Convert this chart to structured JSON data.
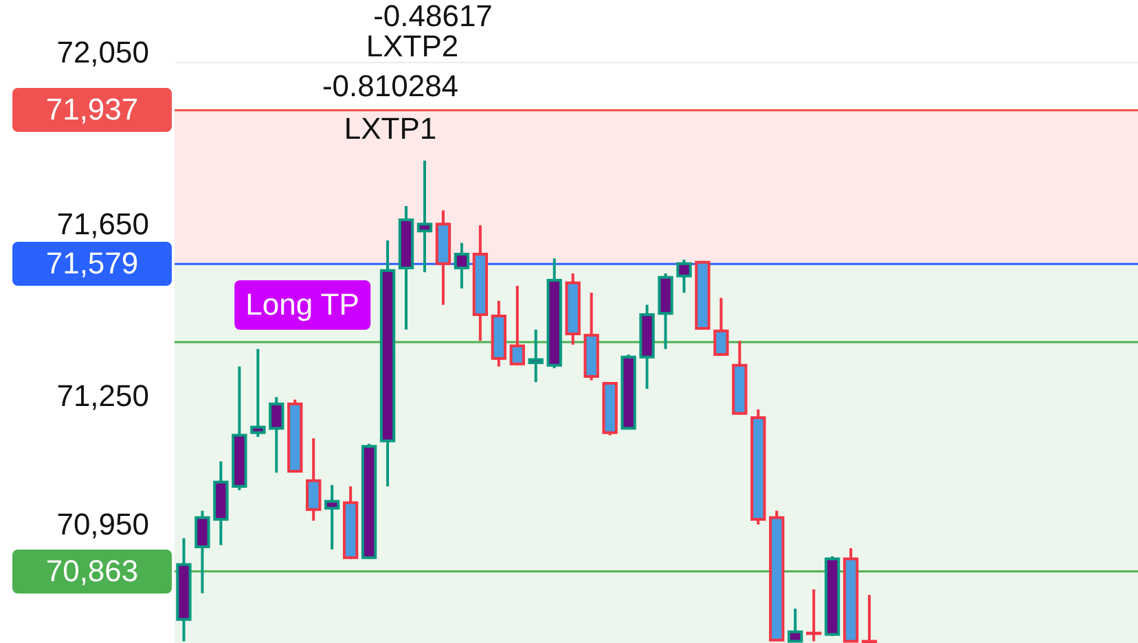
{
  "chart_data": {
    "type": "candlestick",
    "categories": [
      null,
      null,
      null,
      null,
      null,
      null,
      null,
      null,
      null,
      null,
      null,
      null,
      null,
      null,
      null,
      null,
      null,
      null,
      null,
      null,
      null,
      null,
      null,
      null,
      null,
      null,
      null,
      null,
      null,
      null,
      null,
      null,
      null,
      null,
      null,
      null,
      null,
      null,
      null,
      null,
      null,
      null,
      null,
      null,
      null,
      null,
      null,
      null,
      null,
      null,
      null,
      null
    ],
    "ohlc": [
      [
        70751,
        70940,
        70700,
        70879
      ],
      [
        70920,
        71004,
        70812,
        70988
      ],
      [
        70984,
        71119,
        70924,
        71071
      ],
      [
        71061,
        71340,
        71052,
        71180
      ],
      [
        71186,
        71381,
        71176,
        71199
      ],
      [
        71196,
        71269,
        71093,
        71253
      ],
      [
        71253,
        71263,
        71093,
        71096
      ],
      [
        71074,
        71173,
        70981,
        71007
      ],
      [
        71010,
        71064,
        70914,
        71026
      ],
      [
        71023,
        71061,
        70892,
        70895
      ],
      [
        70895,
        71160,
        70892,
        71154
      ],
      [
        71167,
        71634,
        71061,
        71564
      ],
      [
        71570,
        71714,
        71426,
        71682
      ],
      [
        71656,
        71820,
        71560,
        71672
      ],
      [
        71672,
        71704,
        71484,
        71580
      ],
      [
        71570,
        71628,
        71522,
        71602
      ],
      [
        71602,
        71669,
        71400,
        71461
      ],
      [
        71458,
        71493,
        71340,
        71359
      ],
      [
        71388,
        71528,
        71343,
        71346
      ],
      [
        71349,
        71426,
        71304,
        71356
      ],
      [
        71343,
        71592,
        71336,
        71541
      ],
      [
        71535,
        71557,
        71391,
        71416
      ],
      [
        71413,
        71512,
        71308,
        71317
      ],
      [
        71301,
        71301,
        71180,
        71186
      ],
      [
        71196,
        71368,
        71196,
        71362
      ],
      [
        71362,
        71484,
        71288,
        71461
      ],
      [
        71464,
        71557,
        71381,
        71548
      ],
      [
        71551,
        71589,
        71512,
        71580
      ],
      [
        71583,
        71586,
        71429,
        71429
      ],
      [
        71423,
        71500,
        71365,
        71368
      ],
      [
        71343,
        71400,
        71228,
        71231
      ],
      [
        71221,
        71240,
        70972,
        70984
      ],
      [
        70988,
        71004,
        70700,
        70703
      ],
      [
        70700,
        70776,
        70700,
        70722
      ],
      [
        70719,
        70821,
        70700,
        70718
      ],
      [
        70716,
        70898,
        70712,
        70892
      ],
      [
        70892,
        70917,
        70700,
        70700
      ],
      [
        70700,
        70808,
        70697,
        70698
      ],
      null,
      null,
      null,
      null,
      null,
      null,
      null,
      null,
      null,
      null,
      null,
      null,
      null,
      null
    ],
    "colors": [
      "#089981",
      "#089981",
      "#089981",
      "#089981",
      "#089981",
      "#089981",
      "#f23645",
      "#f23645",
      "#089981",
      "#f23645",
      "#089981",
      "#089981",
      "#089981",
      "#089981",
      "#f23645",
      "#089981",
      "#f23645",
      "#f23645",
      "#f23645",
      "#089981",
      "#089981",
      "#f23645",
      "#f23645",
      "#f23645",
      "#089981",
      "#089981",
      "#089981",
      "#089981",
      "#f23645",
      "#f23645",
      "#f23645",
      "#f23645",
      "#f23645",
      "#089981",
      "#f23645",
      "#089981",
      "#f23645",
      "#f23645",
      null,
      null,
      null,
      null,
      null,
      null,
      null,
      null,
      null,
      null,
      null,
      null,
      null,
      null
    ],
    "ylim": [
      70696,
      72194
    ],
    "yticks": [
      {
        "value": 70950,
        "label": "70,950"
      },
      {
        "value": 71250,
        "label": "71,250"
      },
      {
        "value": 71650,
        "label": "71,650"
      },
      {
        "value": 72050,
        "label": "72,050"
      }
    ],
    "grid": "y",
    "tick_labels": "y",
    "bands": [
      {
        "axis": "y",
        "from": 71579,
        "to": 71937,
        "color": "#ffe8e8"
      },
      {
        "axis": "y",
        "from": 70863,
        "to": 71579,
        "color": "#ecf6ec"
      },
      {
        "axis": "y",
        "from": 70696,
        "to": 71397,
        "color": "#ecf6ec"
      }
    ],
    "ref_lines": [
      {
        "axis": "y",
        "value": 71937,
        "label": "71,937",
        "color": "#f05252"
      },
      {
        "axis": "y",
        "value": 71579,
        "label": "71,579",
        "color": "#2962ff"
      },
      {
        "axis": "y",
        "value": 70863,
        "label": "70,863",
        "color": "#4caf50"
      },
      {
        "axis": "y",
        "value": 71397,
        "color": "#4caf50"
      }
    ],
    "annotations": [
      "-0.48617",
      "LXTP2",
      "-0.810284",
      "LXTP1",
      "Long TP"
    ]
  }
}
